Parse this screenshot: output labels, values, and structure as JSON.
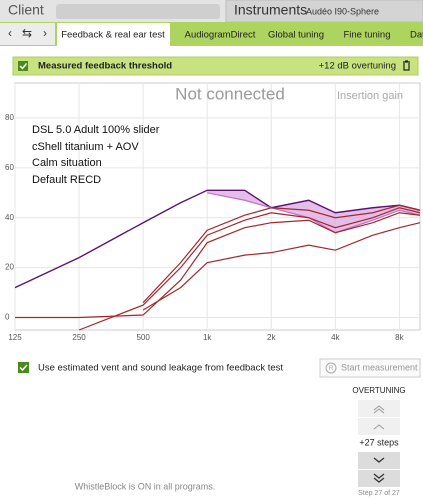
{
  "header": {
    "client_label": "Client",
    "instruments_label": "Instruments",
    "instrument_name": "Audéo I90-Sphere"
  },
  "tabs": [
    "Feedback & real ear test",
    "AudiogramDirect",
    "Global tuning",
    "Fine tuning",
    "Dat"
  ],
  "feedback_bar": {
    "label": "Measured feedback threshold",
    "value": "+12 dB overtuning"
  },
  "chart_data": {
    "type": "line",
    "title": "Not connected",
    "subtitle": "Insertion gain",
    "annotations": [
      "DSL 5.0 Adult 100% slider",
      "cShell titanium + AOV",
      "Calm situation",
      "Default RECD"
    ],
    "x": [
      125,
      250,
      500,
      750,
      1000,
      1500,
      2000,
      3000,
      4000,
      6000,
      8000,
      10000
    ],
    "series": [
      {
        "color": "#5a1470",
        "values": [
          12,
          24,
          38,
          46,
          51,
          51,
          44,
          47,
          42,
          44,
          45,
          43
        ]
      },
      {
        "color": "#c070c8",
        "fill": "#d9a3de",
        "values": [
          null,
          null,
          null,
          null,
          50,
          47,
          44,
          40,
          34,
          39,
          43,
          41
        ]
      },
      {
        "color": "#a3282e",
        "values": [
          0,
          0,
          1,
          15,
          30,
          36,
          38,
          39,
          34,
          38,
          42,
          41
        ]
      },
      {
        "color": "#a3282e",
        "values": [
          null,
          -5,
          5,
          20,
          33,
          39,
          42,
          40,
          36,
          40,
          44,
          42
        ]
      },
      {
        "color": "#a3282e",
        "values": [
          null,
          null,
          6,
          22,
          35,
          41,
          44,
          43,
          40,
          42,
          45,
          43
        ]
      },
      {
        "color": "#a3282e",
        "values": [
          null,
          null,
          3,
          12,
          22,
          25,
          26,
          29,
          27,
          33,
          36,
          38
        ]
      }
    ],
    "xscale": "log",
    "xlim": [
      125,
      10000
    ],
    "ylim": [
      -5,
      94
    ],
    "xticks": [
      125,
      250,
      500,
      {
        "value": 1000,
        "label": "1k"
      },
      {
        "value": 2000,
        "label": "2k"
      },
      {
        "value": 4000,
        "label": "4k"
      },
      {
        "value": 8000,
        "label": "8k"
      }
    ],
    "yticks": [
      0,
      20,
      40,
      60,
      80
    ],
    "grid": true
  },
  "vent_option": "Use estimated vent and sound leakage from feedback test",
  "start_button": "Start measurement",
  "overtuning": {
    "title": "OVERTUNING",
    "steps": "+27 steps",
    "step_info": "Step 27 of 27"
  },
  "footer": "WhistleBlock is ON in all programs."
}
